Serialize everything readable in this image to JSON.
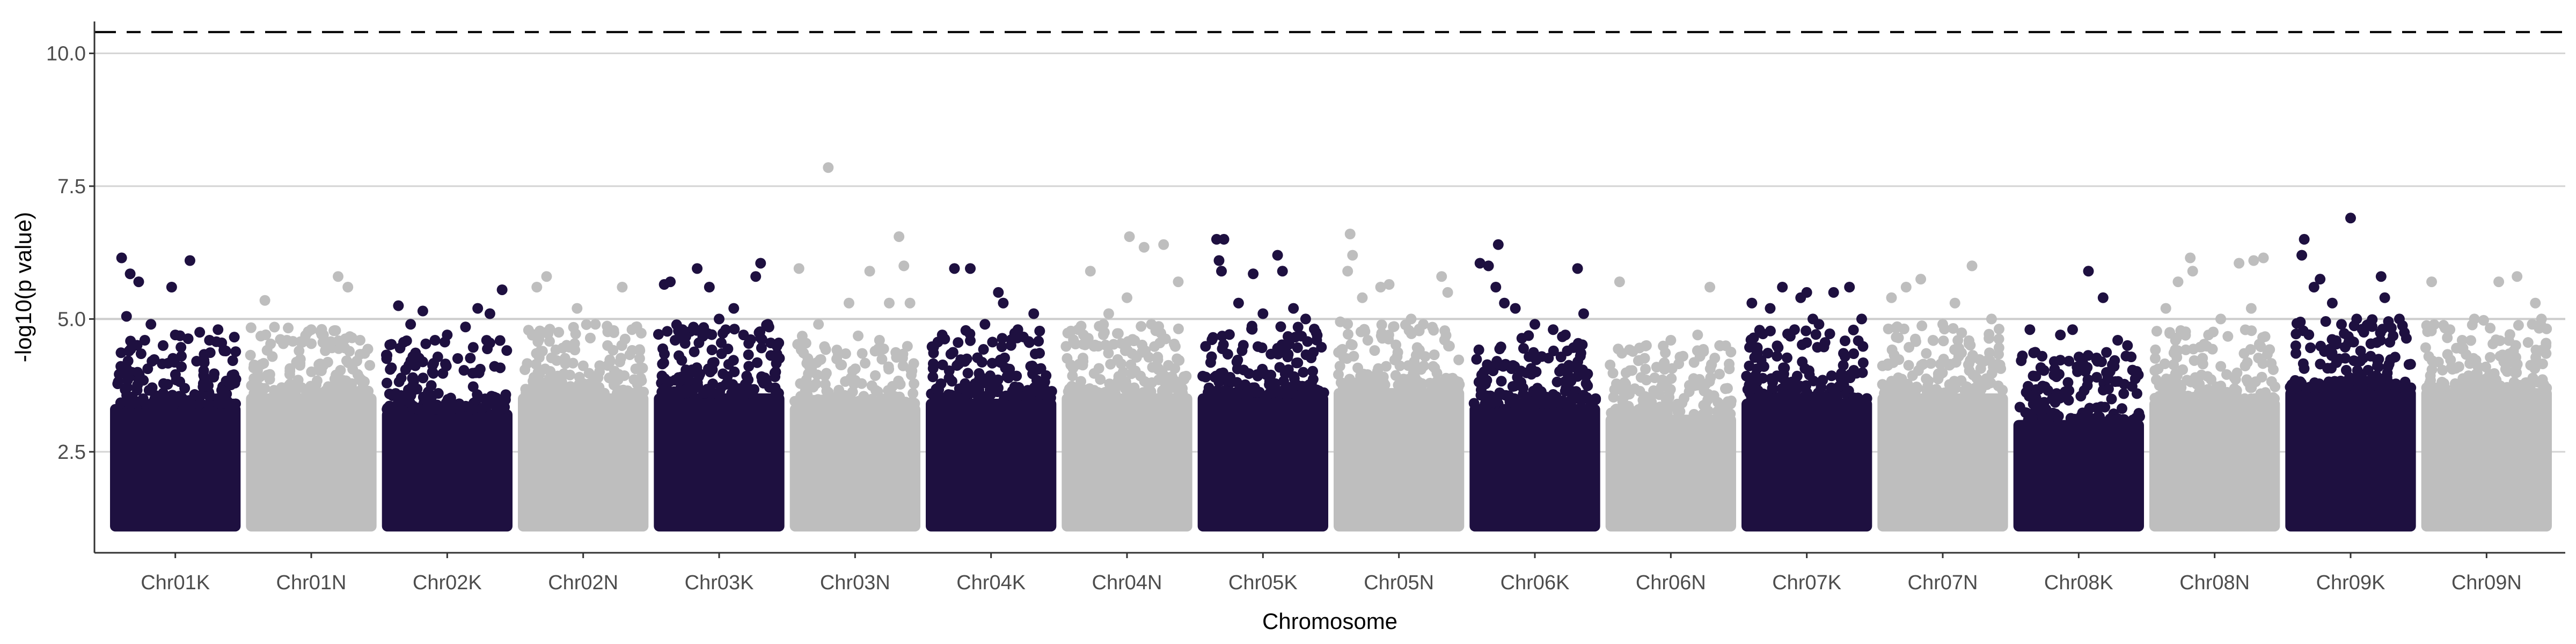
{
  "chart_data": {
    "type": "scatter",
    "xlabel": "Chromosome",
    "ylabel": "-log10(p value)",
    "ylim": [
      0.6,
      10.6
    ],
    "yticks": [
      2.5,
      5.0,
      7.5,
      10.0
    ],
    "yticks_labels": [
      "2.5",
      "5.0",
      "7.5",
      "10.0"
    ],
    "grid": "horizontal major lines",
    "threshold_lines": [
      {
        "y": 10.4,
        "style": "dashed",
        "color": "#000000"
      },
      {
        "y": 5.0,
        "style": "solid",
        "color": "#cccccc"
      }
    ],
    "colors": {
      "odd": "#1e1040",
      "even": "#bebebe"
    },
    "categories": [
      "Chr01K",
      "Chr01N",
      "Chr02K",
      "Chr02N",
      "Chr03K",
      "Chr03N",
      "Chr04K",
      "Chr04N",
      "Chr05K",
      "Chr05N",
      "Chr06K",
      "Chr06N",
      "Chr07K",
      "Chr07N",
      "Chr08K",
      "Chr08N",
      "Chr09K",
      "Chr09N"
    ],
    "min_value": 1.0,
    "dense_top": [
      3.4,
      3.6,
      3.3,
      3.6,
      3.6,
      3.4,
      3.5,
      3.6,
      3.6,
      3.7,
      3.4,
      3.2,
      3.5,
      3.6,
      3.1,
      3.5,
      3.7,
      3.7
    ],
    "series": [
      {
        "name": "Chr01K",
        "points": [
          [
            0.06,
            6.15
          ],
          [
            0.13,
            5.85
          ],
          [
            0.2,
            5.7
          ],
          [
            0.47,
            5.6
          ],
          [
            0.62,
            6.1
          ],
          [
            0.1,
            5.05
          ],
          [
            0.3,
            4.9
          ],
          [
            0.5,
            4.7
          ],
          [
            0.7,
            4.75
          ],
          [
            0.85,
            4.8
          ],
          [
            0.25,
            4.6
          ],
          [
            0.4,
            4.5
          ],
          [
            0.78,
            4.6
          ],
          [
            0.9,
            4.4
          ],
          [
            0.55,
            4.3
          ]
        ]
      },
      {
        "name": "Chr01N",
        "points": [
          [
            0.12,
            5.35
          ],
          [
            0.72,
            5.8
          ],
          [
            0.8,
            5.6
          ],
          [
            0.3,
            4.6
          ],
          [
            0.5,
            4.8
          ],
          [
            0.6,
            4.7
          ],
          [
            0.9,
            4.6
          ],
          [
            0.4,
            4.4
          ]
        ]
      },
      {
        "name": "Chr02K",
        "points": [
          [
            0.1,
            5.25
          ],
          [
            0.3,
            5.15
          ],
          [
            0.75,
            5.2
          ],
          [
            0.95,
            5.55
          ],
          [
            0.85,
            5.1
          ],
          [
            0.2,
            4.9
          ],
          [
            0.5,
            4.7
          ],
          [
            0.65,
            4.85
          ],
          [
            0.4,
            4.6
          ]
        ]
      },
      {
        "name": "Chr02N",
        "points": [
          [
            0.12,
            5.6
          ],
          [
            0.2,
            5.8
          ],
          [
            0.45,
            5.2
          ],
          [
            0.82,
            5.6
          ],
          [
            0.6,
            4.9
          ],
          [
            0.3,
            4.75
          ],
          [
            0.9,
            4.8
          ],
          [
            0.7,
            4.5
          ]
        ]
      },
      {
        "name": "Chr03K",
        "points": [
          [
            0.05,
            5.65
          ],
          [
            0.1,
            5.7
          ],
          [
            0.32,
            5.95
          ],
          [
            0.42,
            5.6
          ],
          [
            0.8,
            5.8
          ],
          [
            0.84,
            6.05
          ],
          [
            0.62,
            5.2
          ],
          [
            0.5,
            5.0
          ],
          [
            0.2,
            4.8
          ],
          [
            0.7,
            4.7
          ],
          [
            0.9,
            4.9
          ]
        ]
      },
      {
        "name": "Chr03N",
        "points": [
          [
            0.04,
            5.95
          ],
          [
            0.28,
            7.85
          ],
          [
            0.45,
            5.3
          ],
          [
            0.62,
            5.9
          ],
          [
            0.86,
            6.55
          ],
          [
            0.9,
            6.0
          ],
          [
            0.78,
            5.3
          ],
          [
            0.95,
            5.3
          ],
          [
            0.2,
            4.9
          ],
          [
            0.7,
            4.6
          ]
        ]
      },
      {
        "name": "Chr04K",
        "points": [
          [
            0.2,
            5.95
          ],
          [
            0.33,
            5.95
          ],
          [
            0.56,
            5.5
          ],
          [
            0.6,
            5.3
          ],
          [
            0.85,
            5.1
          ],
          [
            0.45,
            4.9
          ],
          [
            0.1,
            4.7
          ],
          [
            0.72,
            4.8
          ]
        ]
      },
      {
        "name": "Chr04N",
        "points": [
          [
            0.2,
            5.9
          ],
          [
            0.5,
            5.4
          ],
          [
            0.52,
            6.55
          ],
          [
            0.64,
            6.35
          ],
          [
            0.8,
            6.4
          ],
          [
            0.92,
            5.7
          ],
          [
            0.35,
            5.1
          ],
          [
            0.1,
            4.8
          ],
          [
            0.7,
            4.9
          ]
        ]
      },
      {
        "name": "Chr05K",
        "points": [
          [
            0.12,
            6.5
          ],
          [
            0.18,
            6.5
          ],
          [
            0.14,
            6.1
          ],
          [
            0.16,
            5.9
          ],
          [
            0.42,
            5.85
          ],
          [
            0.62,
            6.2
          ],
          [
            0.66,
            5.9
          ],
          [
            0.85,
            5.0
          ],
          [
            0.3,
            5.3
          ],
          [
            0.5,
            5.1
          ],
          [
            0.75,
            5.2
          ]
        ]
      },
      {
        "name": "Chr05N",
        "points": [
          [
            0.1,
            6.6
          ],
          [
            0.12,
            6.2
          ],
          [
            0.08,
            5.9
          ],
          [
            0.35,
            5.6
          ],
          [
            0.42,
            5.65
          ],
          [
            0.6,
            5.0
          ],
          [
            0.85,
            5.8
          ],
          [
            0.9,
            5.5
          ],
          [
            0.2,
            5.4
          ],
          [
            0.7,
            4.9
          ]
        ]
      },
      {
        "name": "Chr06K",
        "points": [
          [
            0.05,
            6.05
          ],
          [
            0.12,
            6.0
          ],
          [
            0.2,
            6.4
          ],
          [
            0.18,
            5.6
          ],
          [
            0.25,
            5.3
          ],
          [
            0.34,
            5.2
          ],
          [
            0.5,
            4.9
          ],
          [
            0.85,
            5.95
          ],
          [
            0.9,
            5.1
          ],
          [
            0.65,
            4.8
          ],
          [
            0.75,
            4.7
          ]
        ]
      },
      {
        "name": "Chr06N",
        "points": [
          [
            0.08,
            5.7
          ],
          [
            0.3,
            4.5
          ],
          [
            0.5,
            4.6
          ],
          [
            0.72,
            4.7
          ],
          [
            0.82,
            5.6
          ],
          [
            0.9,
            4.5
          ],
          [
            0.6,
            4.3
          ]
        ]
      },
      {
        "name": "Chr07K",
        "points": [
          [
            0.05,
            5.3
          ],
          [
            0.2,
            5.2
          ],
          [
            0.3,
            5.6
          ],
          [
            0.45,
            5.4
          ],
          [
            0.5,
            5.5
          ],
          [
            0.55,
            5.0
          ],
          [
            0.72,
            5.5
          ],
          [
            0.85,
            5.6
          ],
          [
            0.95,
            5.0
          ],
          [
            0.6,
            4.9
          ],
          [
            0.4,
            4.8
          ]
        ]
      },
      {
        "name": "Chr07N",
        "points": [
          [
            0.08,
            5.4
          ],
          [
            0.2,
            5.6
          ],
          [
            0.32,
            5.75
          ],
          [
            0.6,
            5.3
          ],
          [
            0.74,
            6.0
          ],
          [
            0.9,
            5.0
          ],
          [
            0.5,
            4.9
          ],
          [
            0.42,
            4.6
          ]
        ]
      },
      {
        "name": "Chr08K",
        "points": [
          [
            0.1,
            4.8
          ],
          [
            0.2,
            4.3
          ],
          [
            0.35,
            4.7
          ],
          [
            0.45,
            4.8
          ],
          [
            0.58,
            5.9
          ],
          [
            0.7,
            5.4
          ],
          [
            0.82,
            4.6
          ],
          [
            0.9,
            4.5
          ],
          [
            0.3,
            4.2
          ]
        ]
      },
      {
        "name": "Chr08N",
        "points": [
          [
            0.1,
            5.2
          ],
          [
            0.2,
            5.7
          ],
          [
            0.3,
            6.15
          ],
          [
            0.32,
            5.9
          ],
          [
            0.55,
            5.0
          ],
          [
            0.7,
            6.05
          ],
          [
            0.82,
            6.1
          ],
          [
            0.9,
            6.15
          ],
          [
            0.8,
            5.2
          ],
          [
            0.45,
            4.7
          ]
        ]
      },
      {
        "name": "Chr09K",
        "points": [
          [
            0.1,
            6.2
          ],
          [
            0.12,
            6.5
          ],
          [
            0.2,
            5.6
          ],
          [
            0.25,
            5.75
          ],
          [
            0.35,
            5.3
          ],
          [
            0.5,
            6.9
          ],
          [
            0.55,
            5.0
          ],
          [
            0.75,
            5.8
          ],
          [
            0.78,
            5.4
          ],
          [
            0.9,
            5.0
          ],
          [
            0.65,
            4.9
          ]
        ]
      },
      {
        "name": "Chr09N",
        "points": [
          [
            0.05,
            5.7
          ],
          [
            0.4,
            5.0
          ],
          [
            0.6,
            5.7
          ],
          [
            0.75,
            5.8
          ],
          [
            0.9,
            5.3
          ],
          [
            0.95,
            5.0
          ],
          [
            0.2,
            4.8
          ],
          [
            0.3,
            4.6
          ]
        ]
      }
    ]
  }
}
